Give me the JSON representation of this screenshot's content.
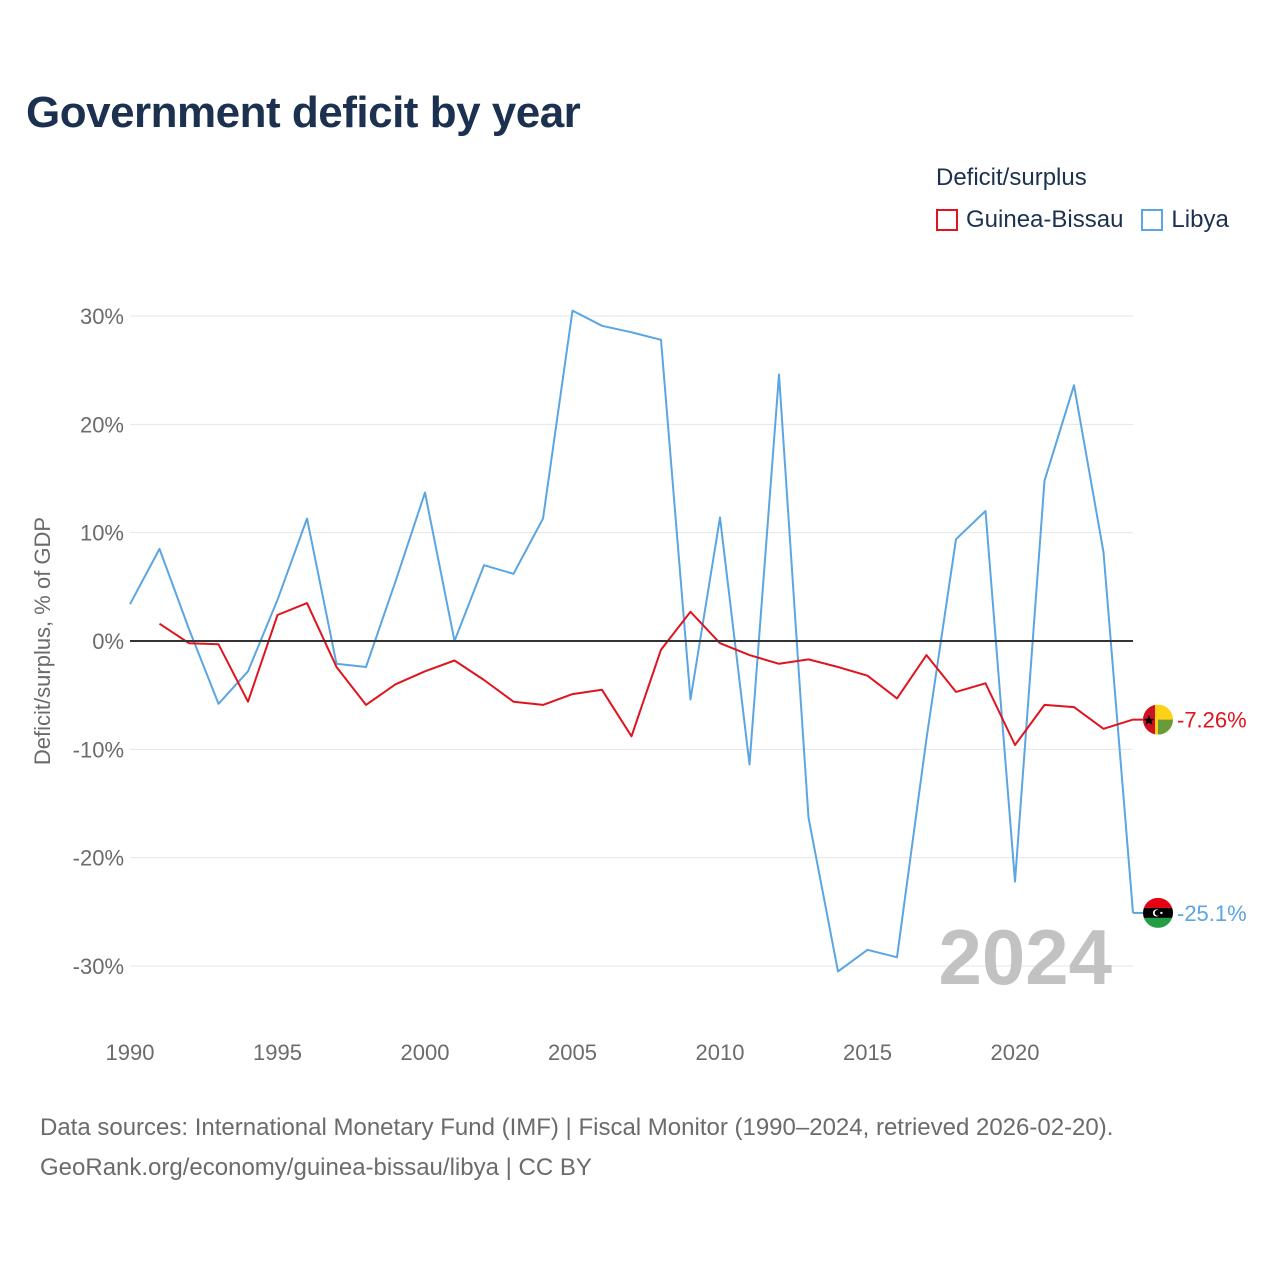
{
  "title": "Government deficit by year",
  "legend": {
    "title": "Deficit/surplus",
    "items": [
      {
        "label": "Guinea-Bissau",
        "color": "#e0141e"
      },
      {
        "label": "Libya",
        "color": "#5aa5e2"
      }
    ]
  },
  "chart_data": {
    "type": "line",
    "title": "Government deficit by year",
    "xlabel": "",
    "ylabel": "Deficit/surplus, % of GDP",
    "xlim": [
      1990,
      2024
    ],
    "ylim": [
      -35,
      30
    ],
    "x_ticks": [
      1990,
      1995,
      2000,
      2005,
      2010,
      2015,
      2020
    ],
    "x_tick_labels": [
      "1990",
      "1995",
      "2000",
      "2005",
      "2010",
      "2015",
      "2020"
    ],
    "y_ticks": [
      30,
      20,
      10,
      0,
      -10,
      -20,
      -30
    ],
    "y_tick_labels": [
      "30%",
      "20%",
      "10%",
      "0%",
      "-10%",
      "-20%",
      "-30%"
    ],
    "year_watermark": "2024",
    "series": [
      {
        "name": "Guinea-Bissau",
        "color": "#e0141e",
        "end_label": "-7.26%",
        "flag": "guinea-bissau-flag-icon",
        "x": [
          1991,
          1992,
          1993,
          1994,
          1995,
          1996,
          1997,
          1998,
          1999,
          2000,
          2001,
          2002,
          2003,
          2004,
          2005,
          2006,
          2007,
          2008,
          2009,
          2010,
          2011,
          2012,
          2013,
          2014,
          2015,
          2016,
          2017,
          2018,
          2019,
          2020,
          2021,
          2022,
          2023,
          2024
        ],
        "values": [
          1.6,
          -0.2,
          -0.3,
          -5.6,
          2.4,
          3.5,
          -2.4,
          -5.9,
          -4.0,
          -2.8,
          -1.8,
          -3.6,
          -5.6,
          -5.9,
          -4.9,
          -4.5,
          -8.8,
          -0.8,
          2.7,
          -0.2,
          -1.3,
          -2.1,
          -1.7,
          -2.4,
          -3.2,
          -5.3,
          -1.3,
          -4.7,
          -3.9,
          -9.6,
          -5.9,
          -6.1,
          -8.1,
          -7.26
        ]
      },
      {
        "name": "Libya",
        "color": "#5aa5e2",
        "end_label": "-25.1%",
        "flag": "libya-flag-icon",
        "x": [
          1990,
          1991,
          1992,
          1993,
          1994,
          1995,
          1996,
          1997,
          1998,
          1999,
          2000,
          2001,
          2002,
          2003,
          2004,
          2005,
          2006,
          2007,
          2008,
          2009,
          2010,
          2011,
          2012,
          2013,
          2014,
          2015,
          2016,
          2017,
          2018,
          2019,
          2020,
          2021,
          2022,
          2023,
          2024
        ],
        "values": [
          3.4,
          8.5,
          1.1,
          -5.8,
          -2.8,
          3.8,
          11.3,
          -2.1,
          -2.4,
          5.5,
          13.7,
          0.0,
          7.0,
          6.2,
          11.3,
          30.5,
          29.1,
          28.5,
          27.8,
          -5.4,
          11.4,
          -11.4,
          24.6,
          -16.3,
          -30.5,
          -28.5,
          -29.2,
          -9.0,
          9.4,
          12.0,
          -22.2,
          14.8,
          23.6,
          8.2,
          -25.1
        ]
      }
    ]
  },
  "footer": {
    "line1": "Data sources: International Monetary Fund (IMF) | Fiscal Monitor (1990–2024, retrieved 2026-02-20).",
    "line2": "GeoRank.org/economy/guinea-bissau/libya | CC BY"
  }
}
